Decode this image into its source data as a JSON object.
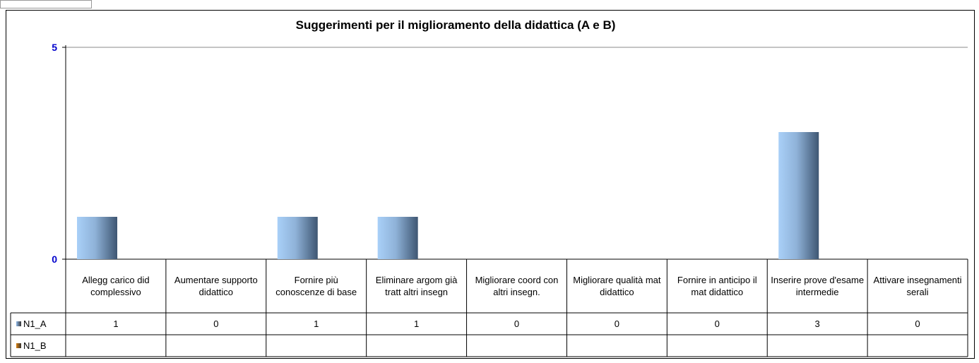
{
  "chart_data": {
    "type": "bar",
    "title": "Suggerimenti per il miglioramento della didattica (A e B)",
    "categories": [
      "Allegg carico did complessivo",
      "Aumentare supporto didattico",
      "Fornire più conoscenze di base",
      "Eliminare argom già tratt altri insegn",
      "Migliorare coord con altri insegn.",
      "Migliorare qualità mat didattico",
      "Fornire in anticipo il mat didattico",
      "Inserire prove d'esame intermedie",
      "Attivare insegnamenti serali"
    ],
    "series": [
      {
        "name": "N1_A",
        "color": "#8fb8e8",
        "values": [
          1,
          0,
          1,
          1,
          0,
          0,
          0,
          3,
          0
        ]
      },
      {
        "name": "N1_B",
        "color": "#d9800f",
        "values": [
          null,
          null,
          null,
          null,
          null,
          null,
          null,
          null,
          null
        ]
      }
    ],
    "ylim": [
      0,
      5
    ],
    "yticks": [
      0,
      5
    ],
    "grid": true
  }
}
